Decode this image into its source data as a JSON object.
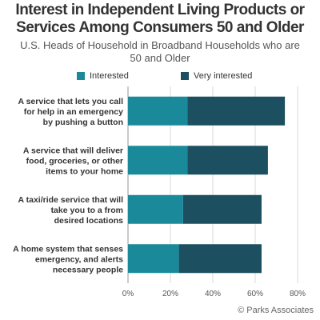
{
  "title": "Interest in Independent Living Products or Services Among Consumers 50 and Older",
  "subtitle": "U.S. Heads of Household in Broadband Households who are 50 and Older",
  "footer": "© Parks Associates",
  "legend": {
    "interested_label": "Interested",
    "very_interested_label": "Very interested"
  },
  "colors": {
    "interested": "#1a8a9a",
    "very_interested": "#1c4f60",
    "gridline": "#d9d9d9",
    "axis": "#999999"
  },
  "chart_data": {
    "type": "bar",
    "orientation": "horizontal",
    "stacked": true,
    "categories": [
      "A service that lets you call for help in an emergency by pushing a button",
      "A service that will deliver food, groceries, or other items to your home",
      "A taxi/ride service that will take you to a from desired locations",
      "A home system that senses emergency, and alerts necessary people"
    ],
    "category_lines": [
      [
        "A service that lets you call",
        "for help in an emergency",
        "by pushing a button"
      ],
      [
        "A service that will deliver",
        "food, groceries, or other",
        "items to your home"
      ],
      [
        "A taxi/ride service that will",
        "take you to a from",
        "desired locations"
      ],
      [
        "A home system that senses",
        "emergency, and alerts",
        "necessary people"
      ]
    ],
    "series": [
      {
        "name": "Interested",
        "values": [
          28,
          28,
          26,
          24
        ]
      },
      {
        "name": "Very interested",
        "values": [
          46,
          38,
          37,
          39
        ]
      }
    ],
    "xlim": [
      0,
      80
    ],
    "xticks": [
      "0%",
      "20%",
      "40%",
      "60%",
      "80%"
    ],
    "legend_position": "top",
    "grid": true
  }
}
